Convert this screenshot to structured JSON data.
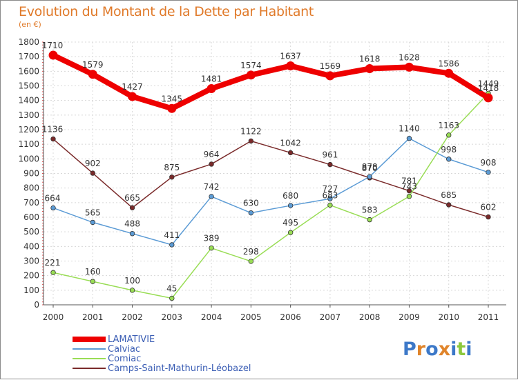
{
  "title": "Evolution du Montant de la Dette par Habitant",
  "subtitle": "(en €)",
  "logo": {
    "text": "Proxiti",
    "letters": [
      "P",
      "r",
      "o",
      "x",
      "i",
      "t",
      "i"
    ],
    "colors": [
      "#3c78c8",
      "#e0842a",
      "#3c78c8",
      "#e0842a",
      "#3c78c8",
      "#8cc83c",
      "#3c78c8"
    ]
  },
  "chart_data": {
    "type": "line",
    "x": [
      "2000",
      "2001",
      "2002",
      "2003",
      "2004",
      "2005",
      "2006",
      "2007",
      "2008",
      "2009",
      "2010",
      "2011"
    ],
    "yticks": [
      0,
      100,
      200,
      300,
      400,
      500,
      600,
      700,
      800,
      900,
      1000,
      1100,
      1200,
      1300,
      1400,
      1500,
      1600,
      1700,
      1800
    ],
    "ylim": [
      0,
      1800
    ],
    "grid": true,
    "legend_position": "bottom",
    "series": [
      {
        "name": "LAMATIVIE",
        "color": "#ee0000",
        "values": [
          1710,
          1579,
          1427,
          1345,
          1481,
          1574,
          1637,
          1569,
          1618,
          1628,
          1586,
          1418
        ],
        "labels": [
          "1710",
          "1579",
          "1427",
          "1345",
          "1481",
          "1574",
          "1637",
          "1569",
          "1618",
          "1628",
          "1586",
          "1418"
        ]
      },
      {
        "name": "Calviac",
        "color": "#5b9bd5",
        "values": [
          664,
          565,
          488,
          411,
          742,
          630,
          680,
          727,
          878,
          1140,
          998,
          908
        ],
        "labels": [
          "664",
          "565",
          "488",
          "411",
          "742",
          "630",
          "680",
          "727",
          "878",
          "1140",
          "998",
          "908"
        ]
      },
      {
        "name": "Comiac",
        "color": "#99dd55",
        "values": [
          221,
          160,
          100,
          45,
          389,
          298,
          495,
          683,
          583,
          743,
          1163,
          1449
        ],
        "labels": [
          "221",
          "160",
          "100",
          "45",
          "389",
          "298",
          "495",
          "683",
          "583",
          "743",
          "1163",
          "1449"
        ]
      },
      {
        "name": "Camps-Saint-Mathurin-Léobazel",
        "color": "#7a2a2a",
        "values": [
          1136,
          902,
          665,
          875,
          964,
          1122,
          1042,
          961,
          870,
          781,
          685,
          602
        ],
        "labels": [
          "1136",
          "902",
          "665",
          "875",
          "964",
          "1122",
          "1042",
          "961",
          "870",
          "781",
          "685",
          "602"
        ]
      }
    ]
  }
}
